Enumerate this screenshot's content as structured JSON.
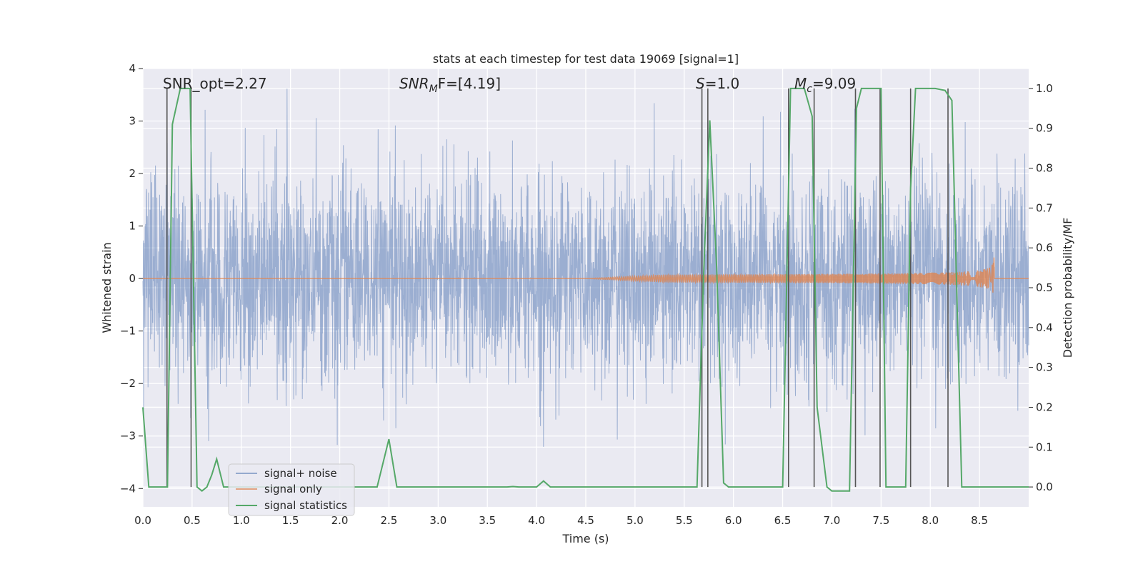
{
  "chart_data": {
    "type": "line",
    "title": "stats at each timestep for test data 19069 [signal=1]",
    "xlabel": "Time (s)",
    "ylabel": "Whitened strain",
    "y2label": "Detection probability/MF",
    "xlim": [
      0.0,
      9.0
    ],
    "ylim": [
      -4.35,
      4.0
    ],
    "y2lim": [
      -0.05,
      1.05
    ],
    "x_ticks": [
      "0.0",
      "0.5",
      "1.0",
      "1.5",
      "2.0",
      "2.5",
      "3.0",
      "3.5",
      "4.0",
      "4.5",
      "5.0",
      "5.5",
      "6.0",
      "6.5",
      "7.0",
      "7.5",
      "8.0",
      "8.5"
    ],
    "y_ticks": [
      "4",
      "3",
      "2",
      "1",
      "0",
      "−1",
      "−2",
      "−3",
      "−4"
    ],
    "y2_ticks": [
      "1.0",
      "0.9",
      "0.8",
      "0.7",
      "0.6",
      "0.5",
      "0.4",
      "0.3",
      "0.2",
      "0.1",
      "0.0"
    ],
    "grid": true,
    "legend_position": "lower-left",
    "annotations": {
      "snr_opt": "SNR_opt=2.27",
      "snr_mf_prefix": "SNR",
      "snr_mf_sub": "M",
      "snr_mf_suffix": "F=[4.19]",
      "s_prefix": "S",
      "s_suffix": "=1.0",
      "mc_prefix": "M",
      "mc_sub": "c",
      "mc_suffix": "=9.09"
    },
    "series": [
      {
        "name": "signal+ noise",
        "color": "#4c72b0",
        "kind": "noise",
        "sample_rate": 400,
        "sigma": 0.95,
        "clip": [
          -3.9,
          3.7
        ]
      },
      {
        "name": "signal only",
        "color": "#dd8452",
        "kind": "chirp",
        "onset": 4.5,
        "merger": 8.65,
        "peak_amplitude": 0.4
      },
      {
        "name": "signal statistics",
        "color": "#55a868",
        "axis": "y2",
        "x": [
          0.0,
          0.06,
          0.25,
          0.3,
          0.38,
          0.48,
          0.55,
          0.6,
          0.65,
          0.7,
          0.75,
          0.82,
          0.9,
          1.0,
          2.0,
          2.38,
          2.5,
          2.58,
          3.0,
          3.5,
          3.7,
          3.76,
          3.82,
          4.0,
          4.07,
          4.14,
          4.2,
          5.0,
          5.55,
          5.63,
          5.7,
          5.76,
          5.83,
          5.9,
          5.95,
          6.0,
          6.5,
          6.58,
          6.65,
          6.72,
          6.8,
          6.85,
          6.95,
          7.0,
          7.18,
          7.25,
          7.3,
          7.5,
          7.55,
          7.65,
          7.75,
          7.8,
          7.85,
          8.05,
          8.15,
          8.22,
          8.32,
          8.5,
          9.0
        ],
        "values": [
          0.2,
          0.0,
          0.0,
          0.91,
          1.0,
          1.0,
          0.0,
          -0.01,
          0.0,
          0.03,
          0.07,
          0.0,
          0.0,
          0.0,
          0.0,
          0.0,
          0.12,
          0.0,
          0.0,
          0.0,
          0.0,
          0.001,
          0.0,
          0.0,
          0.015,
          0.0,
          0.0,
          0.0,
          0.0,
          0.0,
          0.55,
          0.92,
          0.55,
          0.01,
          0.0,
          0.0,
          0.0,
          1.0,
          1.0,
          1.0,
          0.93,
          0.2,
          0.0,
          -0.01,
          -0.01,
          0.95,
          1.0,
          1.0,
          0.0,
          0.0,
          0.0,
          0.75,
          1.0,
          1.0,
          0.995,
          0.97,
          0.0,
          0.0,
          0.0
        ]
      }
    ],
    "vertical_markers": [
      0.245,
      0.49,
      5.68,
      5.74,
      6.56,
      6.82,
      7.24,
      7.49,
      7.8,
      8.18
    ]
  }
}
